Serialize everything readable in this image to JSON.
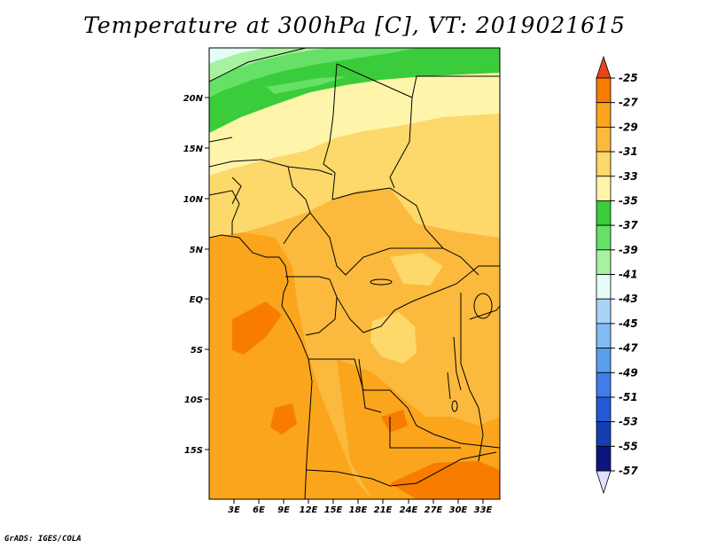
{
  "title": "Temperature at 300hPa [C], VT: 2019021615",
  "credit": "GrADS: IGES/COLA",
  "lat_labels": [
    "20N",
    "15N",
    "10N",
    "5N",
    "EQ",
    "5S",
    "10S",
    "15S"
  ],
  "lon_labels": [
    "3E",
    "6E",
    "9E",
    "12E",
    "15E",
    "18E",
    "21E",
    "24E",
    "27E",
    "30E",
    "33E"
  ],
  "colorbar": {
    "labels": [
      "-25",
      "-27",
      "-29",
      "-31",
      "-33",
      "-35",
      "-37",
      "-39",
      "-41",
      "-43",
      "-45",
      "-47",
      "-49",
      "-51",
      "-53",
      "-55",
      "-57"
    ],
    "colors": [
      "#e8451a",
      "#f87c00",
      "#faa51c",
      "#fbba3d",
      "#fdd86a",
      "#fef5aa",
      "#3acc3a",
      "#66e066",
      "#a6f2a0",
      "#e5fdf8",
      "#a8d4f8",
      "#82bcf4",
      "#5a9fee",
      "#3f7eeb",
      "#2459d6",
      "#153fb0",
      "#0c1480"
    ],
    "top_tip_color": "#e8451a",
    "bottom_tip_color": "#e0e0ff"
  },
  "map": {
    "fields": {
      "cold_band": "#3acc3a",
      "cold_band_light": "#66e066",
      "cold_band_pale": "#a6f2a0",
      "coldest_patch": "#e5fdf8",
      "level_35": "#fef5aa",
      "level_33": "#fdd86a",
      "level_31": "#fbba3d",
      "level_29": "#faa51c",
      "level_27": "#f87c00"
    }
  }
}
